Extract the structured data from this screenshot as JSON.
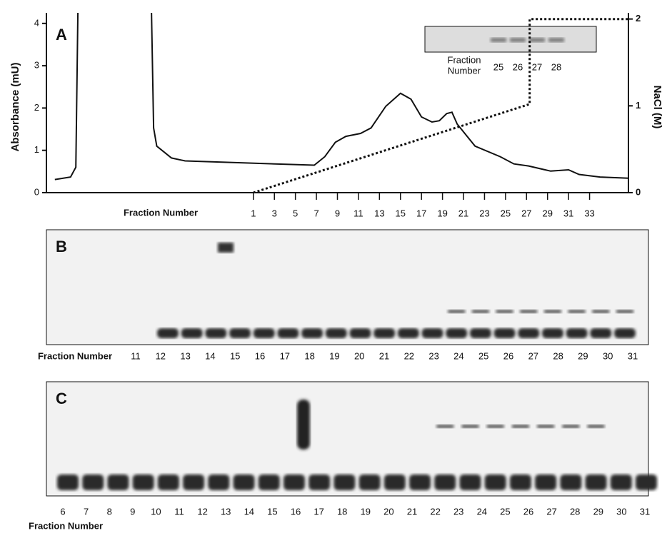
{
  "chart_data": {
    "type": "line",
    "panel_label": "A",
    "x_label": "Fraction Number",
    "y_label": "Absorbance (mU)",
    "y2_label": "NaCl (M)",
    "xlim": [
      -18.7,
      36.7
    ],
    "ylim": [
      0,
      4.25
    ],
    "y2lim": [
      0,
      2.03
    ],
    "xticks": [
      1,
      3,
      5,
      7,
      9,
      11,
      13,
      15,
      17,
      19,
      21,
      23,
      25,
      27,
      29,
      31,
      33
    ],
    "yticks": [
      0,
      1,
      2,
      3,
      4
    ],
    "y2ticks": [
      0,
      1,
      2
    ],
    "series": [
      {
        "color": "#111111",
        "style": "solid",
        "x": [
          -17.9,
          -16.4,
          -15.9,
          -15.7,
          -8.7,
          -8.5,
          -8.2,
          -6.8,
          -5.5,
          -0.7,
          6.8,
          7.8,
          8.8,
          9.8,
          11.2,
          12.2,
          13.6,
          15.0,
          16.0,
          17.0,
          18.0,
          18.7,
          19.4,
          19.9,
          20.4,
          22.1,
          24.5,
          25.8,
          27.2,
          29.3,
          31.0,
          32.0,
          34.0,
          36.7
        ],
        "values": [
          0.31,
          0.37,
          0.6,
          4.3,
          4.3,
          1.53,
          1.1,
          0.82,
          0.75,
          0.71,
          0.65,
          0.85,
          1.19,
          1.33,
          1.4,
          1.53,
          2.04,
          2.35,
          2.21,
          1.79,
          1.67,
          1.7,
          1.87,
          1.9,
          1.62,
          1.1,
          0.85,
          0.68,
          0.63,
          0.51,
          0.54,
          0.43,
          0.37,
          0.34
        ]
      },
      {
        "color": "#111111",
        "style": "dotted",
        "axis": "y2",
        "x": [
          1,
          27.3,
          27.3,
          36.7
        ],
        "values": [
          0,
          1.02,
          2,
          2
        ]
      }
    ],
    "inset": {
      "label_lines": [
        "Fraction",
        "Number"
      ],
      "lanes": [
        "25",
        "26",
        "27",
        "28"
      ]
    }
  },
  "panels": [
    {
      "label": "B",
      "lane_title": "Fraction Number",
      "lanes": [
        "11",
        "12",
        "13",
        "14",
        "15",
        "16",
        "17",
        "18",
        "19",
        "20",
        "21",
        "22",
        "23",
        "24",
        "25",
        "26",
        "27",
        "28",
        "29",
        "30",
        "31"
      ]
    },
    {
      "label": "C",
      "lane_title": "Fraction Number",
      "lanes": [
        "6",
        "7",
        "8",
        "9",
        "10",
        "11",
        "12",
        "13",
        "14",
        "15",
        "16",
        "17",
        "18",
        "19",
        "20",
        "21",
        "22",
        "23",
        "24",
        "25",
        "26",
        "27",
        "28",
        "29",
        "30",
        "31"
      ]
    }
  ]
}
